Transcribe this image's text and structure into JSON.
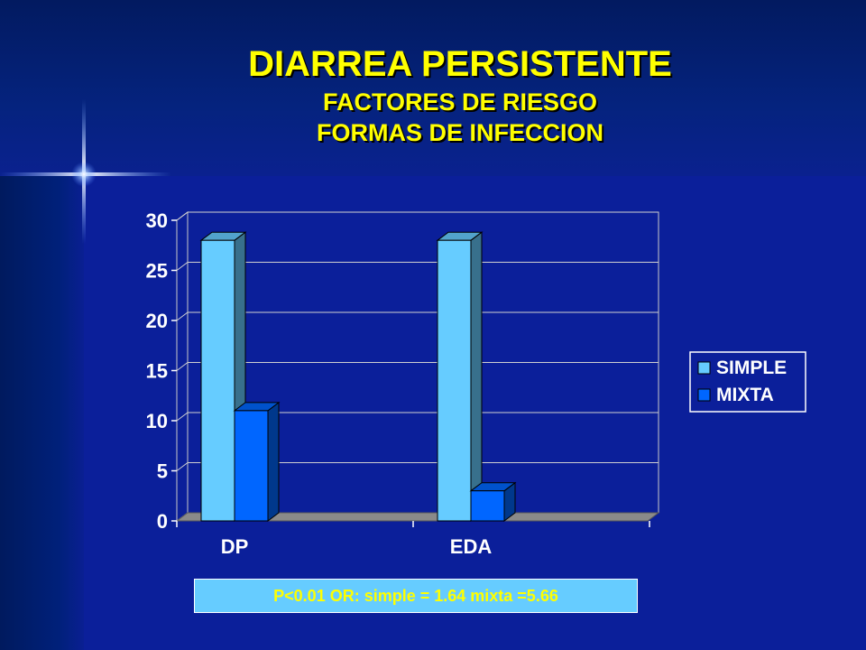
{
  "slide": {
    "title": "DIARREA PERSISTENTE",
    "subtitle_1": "FACTORES DE RIESGO",
    "subtitle_2": "FORMAS DE INFECCION",
    "stats_note": "P<0.01 OR: simple = 1.64 mixta =5.66"
  },
  "colors": {
    "background": "#0b1f9a",
    "title": "#ffff00",
    "simple_face": "#66ccff",
    "mixta_face": "#0066ff",
    "floor": "#8a8a8a"
  },
  "chart_data": {
    "type": "bar",
    "categories": [
      "DP",
      "EDA"
    ],
    "series": [
      {
        "name": "SIMPLE",
        "values": [
          28,
          28
        ]
      },
      {
        "name": "MIXTA",
        "values": [
          11,
          3
        ]
      }
    ],
    "ylim": [
      0,
      30
    ],
    "yticks": [
      "0",
      "5",
      "10",
      "15",
      "20",
      "25",
      "30"
    ],
    "grid": true,
    "legend_position": "right"
  }
}
